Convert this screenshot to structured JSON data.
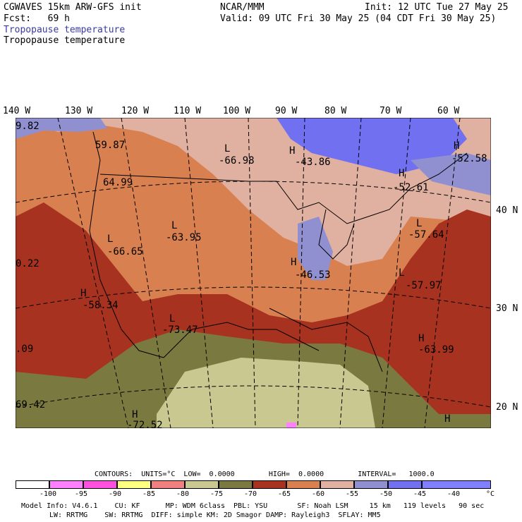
{
  "header": {
    "model": "CGWAVES 15km ARW-GFS init",
    "center": "NCAR/MMM",
    "init": "Init: 12 UTC Tue 27 May 25",
    "fcst_label": "Fcst:   69 h",
    "valid": "Valid: 09 UTC Fri 30 May 25 (04 CDT Fri 30 May 25)",
    "field1": "Tropopause temperature",
    "field2": "Tropopause temperature"
  },
  "axes": {
    "top_lon": [
      "140 W",
      "130 W",
      "120 W",
      "110 W",
      "100 W",
      "90 W",
      "80 W",
      "70 W",
      "60 W"
    ],
    "right_lat": [
      "40 N",
      "30 N",
      "20 N"
    ]
  },
  "map_labels": [
    {
      "text": "9.82"
    },
    {
      "text": "59.87"
    },
    {
      "text": "64.99"
    },
    {
      "text": "L"
    },
    {
      "text": "-66.98"
    },
    {
      "text": "H"
    },
    {
      "text": "-43.86"
    },
    {
      "text": "H"
    },
    {
      "text": "-52.58"
    },
    {
      "text": "H"
    },
    {
      "text": "-52.61"
    },
    {
      "text": "L"
    },
    {
      "text": "-63.95"
    },
    {
      "text": "L"
    },
    {
      "text": "-66.65"
    },
    {
      "text": "0.22"
    },
    {
      "text": "H"
    },
    {
      "text": "-46.53"
    },
    {
      "text": "L"
    },
    {
      "text": "-57.64"
    },
    {
      "text": "H"
    },
    {
      "text": "-58.34"
    },
    {
      "text": "L"
    },
    {
      "text": "-57.97"
    },
    {
      "text": "L"
    },
    {
      "text": "-73.47"
    },
    {
      "text": ".09"
    },
    {
      "text": "H"
    },
    {
      "text": "-63.99"
    },
    {
      "text": "69.42"
    },
    {
      "text": "H"
    },
    {
      "text": "-72.52"
    },
    {
      "text": "H"
    }
  ],
  "legend": {
    "contours_line": "CONTOURS:  UNITS=°C  LOW=  0.0000        HIGH=  0.0000        INTERVAL=   1000.0",
    "ticks": [
      "-100",
      "-95",
      "-90",
      "-85",
      "-80",
      "-75",
      "-70",
      "-65",
      "-60",
      "-55",
      "-50",
      "-45",
      "-40",
      "°C"
    ],
    "colors": [
      "#ffffff",
      "#ff80ff",
      "#ff50e0",
      "#ffff80",
      "#f08080",
      "#c8c890",
      "#7a7a40",
      "#a83220",
      "#d98050",
      "#e0b0a0",
      "#9090d0",
      "#7070f0",
      "#8080ff"
    ]
  },
  "footer": {
    "line1": "Model Info: V4.6.1    CU: KF      MP: WDM 6class  PBL: YSU       SF: Noah LSM     15 km   119 levels   90 sec",
    "line2": "LW: RRTMG    SW: RRTMG  DIFF: simple KM: 2D Smagor DAMP: Rayleigh3  SFLAY: MM5"
  }
}
